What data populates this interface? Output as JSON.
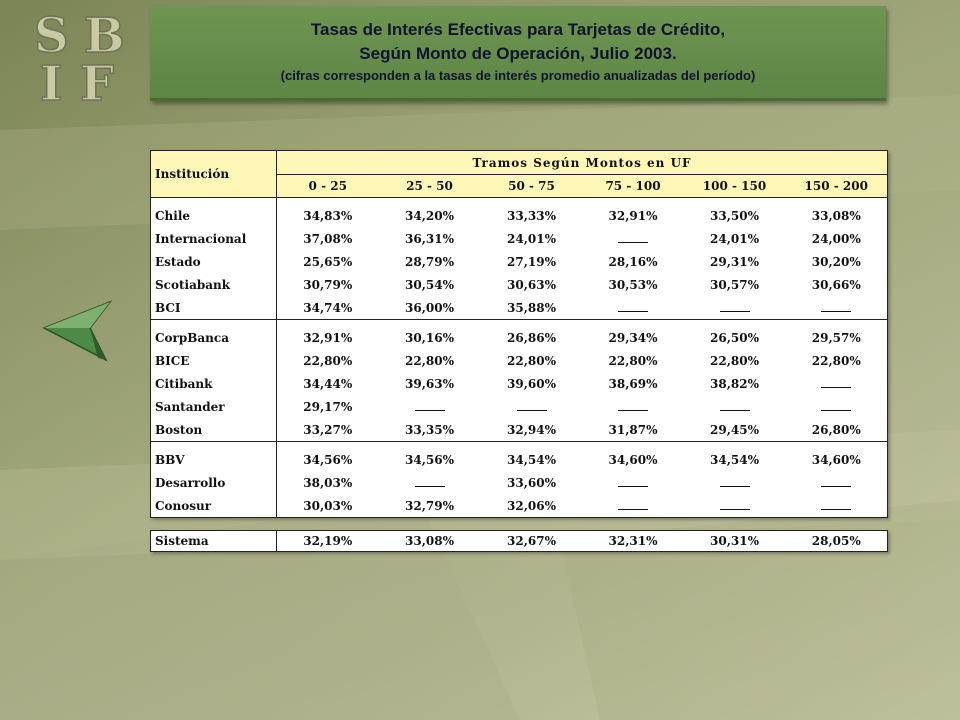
{
  "header": {
    "title_line1": "Tasas de Interés Efectivas para Tarjetas de Crédito,",
    "title_line2": "Según Monto de Operación, Julio 2003.",
    "title_line3": "(cifras corresponden a la tasas de interés promedio anualizadas del período)"
  },
  "logo": {
    "letters": [
      "S",
      "B",
      "I",
      "F"
    ]
  },
  "table": {
    "institution_header": "Institución",
    "group_header": "Tramos Según Montos en UF",
    "ranges": [
      "0 - 25",
      "25 - 50",
      "50 - 75",
      "75 - 100",
      "100 - 150",
      "150 - 200"
    ],
    "groups": [
      [
        {
          "name": "Chile",
          "values": [
            "34,83%",
            "34,20%",
            "33,33%",
            "32,91%",
            "33,50%",
            "33,08%"
          ]
        },
        {
          "name": "Internacional",
          "values": [
            "37,08%",
            "36,31%",
            "24,01%",
            "",
            "24,01%",
            "24,00%"
          ]
        },
        {
          "name": "Estado",
          "values": [
            "25,65%",
            "28,79%",
            "27,19%",
            "28,16%",
            "29,31%",
            "30,20%"
          ]
        },
        {
          "name": "Scotiabank",
          "values": [
            "30,79%",
            "30,54%",
            "30,63%",
            "30,53%",
            "30,57%",
            "30,66%"
          ]
        },
        {
          "name": "BCI",
          "values": [
            "34,74%",
            "36,00%",
            "35,88%",
            "",
            "",
            ""
          ]
        }
      ],
      [
        {
          "name": "CorpBanca",
          "values": [
            "32,91%",
            "30,16%",
            "26,86%",
            "29,34%",
            "26,50%",
            "29,57%"
          ]
        },
        {
          "name": "BICE",
          "values": [
            "22,80%",
            "22,80%",
            "22,80%",
            "22,80%",
            "22,80%",
            "22,80%"
          ]
        },
        {
          "name": "Citibank",
          "values": [
            "34,44%",
            "39,63%",
            "39,60%",
            "38,69%",
            "38,82%",
            ""
          ]
        },
        {
          "name": "Santander",
          "values": [
            "29,17%",
            "",
            "",
            "",
            "",
            ""
          ]
        },
        {
          "name": "Boston",
          "values": [
            "33,27%",
            "33,35%",
            "32,94%",
            "31,87%",
            "29,45%",
            "26,80%"
          ]
        }
      ],
      [
        {
          "name": "BBV",
          "values": [
            "34,56%",
            "34,56%",
            "34,54%",
            "34,60%",
            "34,54%",
            "34,60%"
          ]
        },
        {
          "name": "Desarrollo",
          "values": [
            "38,03%",
            "",
            "33,60%",
            "",
            "",
            ""
          ]
        },
        {
          "name": "Conosur",
          "values": [
            "30,03%",
            "32,79%",
            "32,06%",
            "",
            "",
            ""
          ]
        }
      ]
    ],
    "system": {
      "name": "Sistema",
      "values": [
        "32,19%",
        "33,08%",
        "32,67%",
        "32,31%",
        "30,31%",
        "28,05%"
      ]
    }
  },
  "colors": {
    "title_box": "#5d8544",
    "table_header": "#fff7b8",
    "logo": "#c9c9a4"
  },
  "navigation": {
    "back_arrow_icon": "back-arrow-icon"
  }
}
